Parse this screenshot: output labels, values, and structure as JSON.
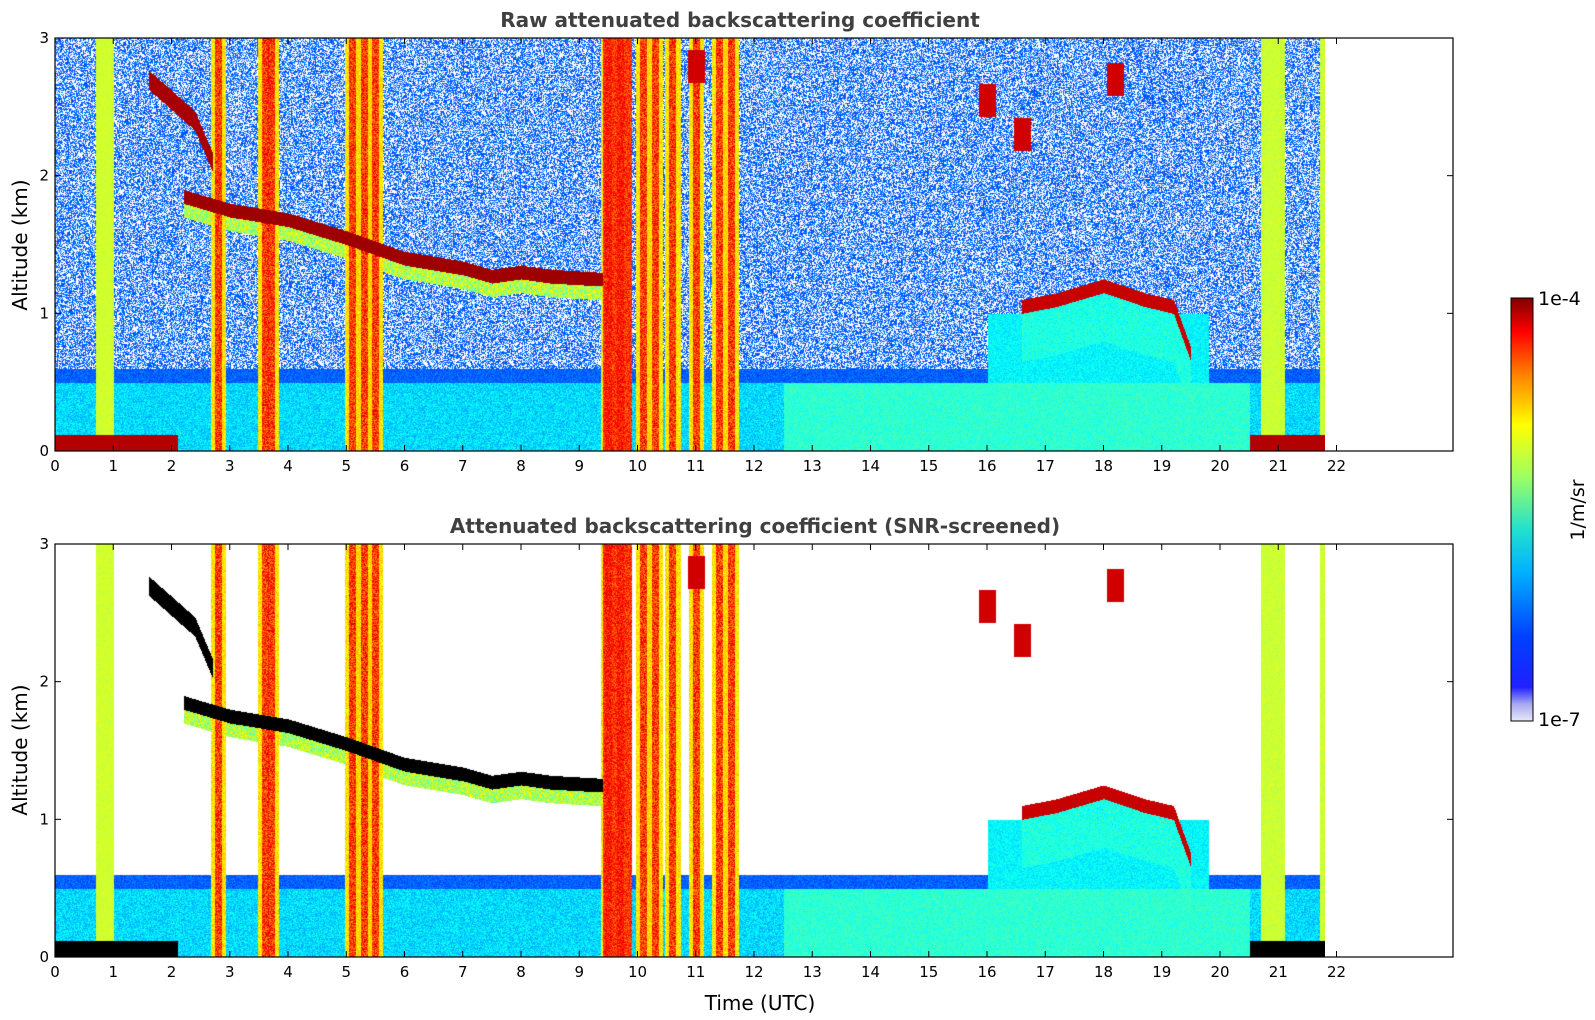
{
  "chart_data": [
    {
      "type": "heatmap",
      "title": "Raw attenuated backscattering coefficient",
      "xlabel": "",
      "ylabel": "Altitude (km)",
      "xlim": [
        0,
        24
      ],
      "ylim": [
        0,
        3
      ],
      "xticks": [
        0,
        1,
        2,
        3,
        4,
        5,
        6,
        7,
        8,
        9,
        10,
        11,
        12,
        13,
        14,
        15,
        16,
        17,
        18,
        19,
        20,
        21,
        22
      ],
      "yticks": [
        0,
        1,
        2,
        3
      ],
      "data_end_hour": 22,
      "screened": false,
      "features": {
        "pbl_top_km": [
          [
            2.2,
            1.85
          ],
          [
            3.0,
            1.75
          ],
          [
            4.0,
            1.68
          ],
          [
            5.0,
            1.55
          ],
          [
            6.0,
            1.4
          ],
          [
            7.0,
            1.33
          ],
          [
            7.5,
            1.27
          ],
          [
            8.0,
            1.3
          ],
          [
            8.5,
            1.27
          ],
          [
            9.3,
            1.25
          ]
        ],
        "upper_cloud_track_km": [
          [
            1.6,
            2.7
          ],
          [
            2.0,
            2.55
          ],
          [
            2.4,
            2.4
          ],
          [
            2.7,
            2.1
          ]
        ],
        "precip_columns_hour": [
          2.8,
          3.6,
          3.7,
          5.1,
          5.3,
          5.5,
          9.5,
          9.7,
          10.1,
          10.3,
          10.6,
          11.0,
          11.4,
          11.6
        ],
        "evening_cloud_km": [
          [
            16.6,
            1.05
          ],
          [
            17.2,
            1.1
          ],
          [
            18.0,
            1.2
          ],
          [
            18.7,
            1.1
          ],
          [
            19.2,
            1.05
          ],
          [
            19.5,
            0.7
          ]
        ],
        "high_cloud_patches": [
          [
            16.0,
            2.55
          ],
          [
            16.6,
            2.3
          ],
          [
            18.2,
            2.7
          ],
          [
            11.0,
            2.8
          ]
        ]
      }
    },
    {
      "type": "heatmap",
      "title": "Attenuated backscattering coefficient (SNR-screened)",
      "xlabel": "Time (UTC)",
      "ylabel": "Altitude (km)",
      "xlim": [
        0,
        24
      ],
      "ylim": [
        0,
        3
      ],
      "xticks": [
        0,
        1,
        2,
        3,
        4,
        5,
        6,
        7,
        8,
        9,
        10,
        11,
        12,
        13,
        14,
        15,
        16,
        17,
        18,
        19,
        20,
        21,
        22
      ],
      "yticks": [
        0,
        1,
        2,
        3
      ],
      "data_end_hour": 22,
      "screened": true
    }
  ],
  "colorbar": {
    "label": "1/m/sr",
    "min_label": "1e-7",
    "max_label": "1e-4",
    "colormap": "jet",
    "low_color": "#e8e8f8",
    "high_color": "#800000"
  }
}
